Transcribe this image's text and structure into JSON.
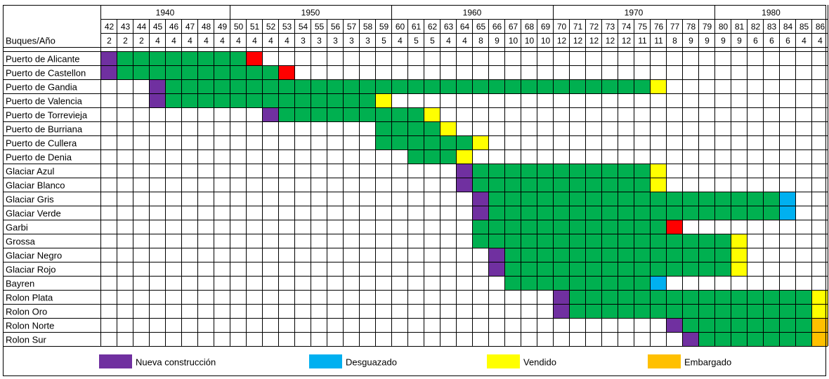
{
  "chart_data": {
    "type": "table",
    "row_header": "Buques/Año",
    "decades": [
      "1940",
      "1950",
      "1960",
      "1970",
      "1980"
    ],
    "years": [
      "42",
      "43",
      "44",
      "45",
      "46",
      "47",
      "48",
      "49",
      "50",
      "51",
      "52",
      "53",
      "54",
      "55",
      "56",
      "57",
      "58",
      "59",
      "60",
      "61",
      "62",
      "63",
      "64",
      "65",
      "66",
      "67",
      "68",
      "69",
      "70",
      "71",
      "72",
      "73",
      "74",
      "75",
      "76",
      "77",
      "78",
      "79",
      "80",
      "81",
      "82",
      "83",
      "84",
      "85",
      "86"
    ],
    "counts": [
      "2",
      "2",
      "2",
      "4",
      "4",
      "4",
      "4",
      "4",
      "4",
      "4",
      "4",
      "4",
      "3",
      "3",
      "3",
      "3",
      "3",
      "5",
      "4",
      "5",
      "5",
      "4",
      "4",
      "8",
      "9",
      "10",
      "10",
      "10",
      "12",
      "12",
      "12",
      "12",
      "12",
      "11",
      "11",
      "8",
      "9",
      "9",
      "9",
      "9",
      "6",
      "6",
      "6",
      "4",
      "4"
    ],
    "colors": {
      "N": "#7030a0",
      "A": "#00b050",
      "D": "#00b0f0",
      "V": "#ffff00",
      "E": "#ffc000",
      "X": "#ff0000"
    },
    "ships": [
      {
        "name": "Puerto de Alicante",
        "cells": "NAAAAAAAAX"
      },
      {
        "name": "Puerto de Castellon",
        "cells": "NAAAAAAAAAAX"
      },
      {
        "name": "Puerto de Gandia",
        "cells": "...NAAAAAAAAAAAAAAAAAAAAAAAAAAAAAAV"
      },
      {
        "name": "Puerto de Valencia",
        "cells": "...NAAAAAAAAAAAAAV"
      },
      {
        "name": "Puerto de Torrevieja",
        "cells": "..........NAAAAAAAAAV"
      },
      {
        "name": "Puerto de Burriana",
        "cells": ".................AAAAV"
      },
      {
        "name": "Puerto de Cullera",
        "cells": ".................AAAAAAV"
      },
      {
        "name": "Puerto de Denia",
        "cells": "...................AAAV"
      },
      {
        "name": "Glaciar Azul",
        "cells": "......................NAAAAAAAAAAAV"
      },
      {
        "name": "Glaciar Blanco",
        "cells": "......................NAAAAAAAAAAAV"
      },
      {
        "name": "Glaciar Gris",
        "cells": ".......................NAAAAAAAAAAAAAAAAAAD"
      },
      {
        "name": "Glaciar Verde",
        "cells": ".......................NAAAAAAAAAAAAAAAAAAD"
      },
      {
        "name": "Garbi",
        "cells": ".......................AAAAAAAAAAAAX"
      },
      {
        "name": "Grossa",
        "cells": ".......................AAAAAAAAAAAAAAAAV"
      },
      {
        "name": "Glaciar Negro",
        "cells": "........................NAAAAAAAAAAAAAAV"
      },
      {
        "name": "Glaciar Rojo",
        "cells": "........................NAAAAAAAAAAAAAAV"
      },
      {
        "name": "Bayren",
        "cells": ".........................AAAAAAAAAD"
      },
      {
        "name": "Rolon Plata",
        "cells": "............................NAAAAAAAAAAAAAAAV"
      },
      {
        "name": "Rolon Oro",
        "cells": "............................NAAAAAAAAAAAAAAAV"
      },
      {
        "name": "Rolon Norte",
        "cells": "...................................NAAAAAAAAE"
      },
      {
        "name": "Rolon Sur",
        "cells": "....................................NAAAAAAAE"
      }
    ],
    "legend": [
      {
        "key": "N",
        "label": "Nueva construcción"
      },
      {
        "key": "D",
        "label": "Desguazado"
      },
      {
        "key": "V",
        "label": "Vendido"
      },
      {
        "key": "E",
        "label": "Embargado"
      }
    ]
  }
}
